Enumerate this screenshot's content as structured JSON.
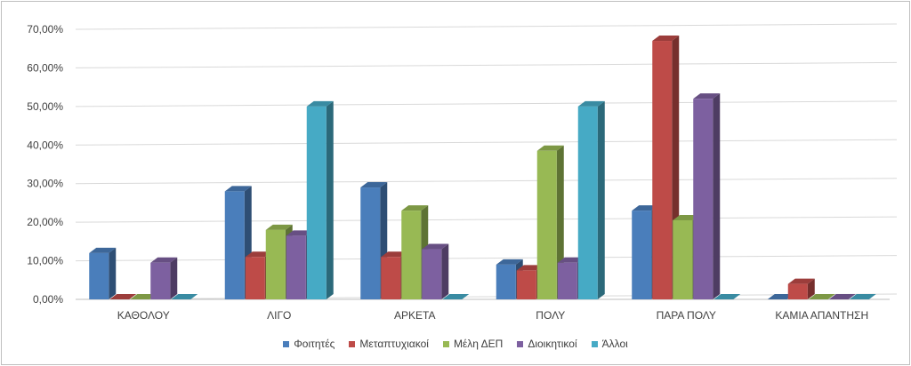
{
  "chart_data": {
    "type": "bar",
    "title": "",
    "xlabel": "",
    "ylabel": "",
    "ylim": [
      0,
      0.7
    ],
    "yticks": [
      "0,00%",
      "10,00%",
      "20,00%",
      "30,00%",
      "40,00%",
      "50,00%",
      "60,00%",
      "70,00%"
    ],
    "grid": true,
    "legend_position": "bottom",
    "categories": [
      "ΚΑΘΟΛΟΥ",
      "ΛΙΓΟ",
      "ΑΡΚΕΤΑ",
      "ΠΟΛΥ",
      "ΠΑΡΑ ΠΟΛΥ",
      "ΚΑΜΙΑ ΑΠΑΝΤΗΣΗ"
    ],
    "series": [
      {
        "name": "Φοιτητές",
        "color": "#4a7ebb",
        "values": [
          0.12,
          0.28,
          0.29,
          0.09,
          0.23,
          0.0
        ]
      },
      {
        "name": "Μεταπτυχιακοί",
        "color": "#be4b48",
        "values": [
          0.0,
          0.11,
          0.11,
          0.075,
          0.67,
          0.04
        ]
      },
      {
        "name": "Μέλη ΔΕΠ",
        "color": "#98b954",
        "values": [
          0.0,
          0.18,
          0.23,
          0.385,
          0.205,
          0.0
        ]
      },
      {
        "name": "Διοικητικοί",
        "color": "#7d60a0",
        "values": [
          0.095,
          0.165,
          0.13,
          0.095,
          0.52,
          0.0
        ]
      },
      {
        "name": "Άλλοι",
        "color": "#46aac5",
        "values": [
          0.0,
          0.5,
          0.0,
          0.5,
          0.0,
          0.0
        ]
      }
    ]
  }
}
